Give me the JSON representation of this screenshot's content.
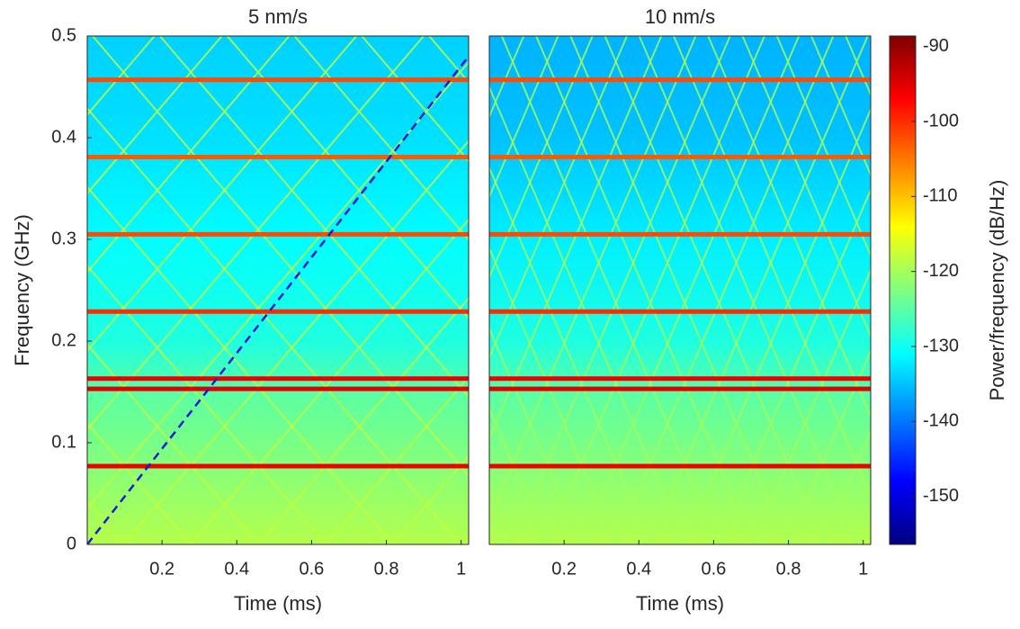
{
  "chart_data": [
    {
      "type": "spectrogram",
      "title": "5 nm/s",
      "xlabel": "Time (ms)",
      "ylabel": "Frequency (GHz)",
      "xlim": [
        0,
        1.02
      ],
      "ylim": [
        0,
        0.5
      ],
      "xticks": [
        0.2,
        0.4,
        0.6,
        0.8,
        1
      ],
      "yticks": [
        0,
        0.1,
        0.2,
        0.3,
        0.4,
        0.5
      ],
      "noise_floor": {
        "f": [
          0,
          0.05,
          0.1,
          0.15,
          0.2,
          0.3,
          0.4,
          0.5
        ],
        "level": [
          -119,
          -121,
          -123,
          -125,
          -129,
          -131,
          -133,
          -134
        ]
      },
      "tones": {
        "f": [
          0.077,
          0.153,
          0.163,
          0.229,
          0.305,
          0.381,
          0.457
        ],
        "level": [
          -96,
          -95,
          -96,
          -100,
          -102,
          -103,
          -102
        ]
      },
      "diagonals": {
        "slope": 0.43,
        "period": 0.18,
        "level": -118
      },
      "dashed_line": {
        "x": [
          0,
          1.02
        ],
        "y": [
          0,
          0.48
        ],
        "color": "#1a1ad4"
      }
    },
    {
      "type": "spectrogram",
      "title": "10 nm/s",
      "xlabel": "Time (ms)",
      "xlim": [
        0,
        1.02
      ],
      "ylim": [
        0,
        0.5
      ],
      "xticks": [
        0.2,
        0.4,
        0.6,
        0.8,
        1
      ],
      "noise_floor": {
        "f": [
          0,
          0.05,
          0.1,
          0.15,
          0.2,
          0.3,
          0.4,
          0.5
        ],
        "level": [
          -119,
          -121,
          -123,
          -125,
          -129,
          -132,
          -135,
          -136
        ]
      },
      "tones": {
        "f": [
          0.077,
          0.153,
          0.163,
          0.229,
          0.305,
          0.381,
          0.457
        ],
        "level": [
          -96,
          -95,
          -96,
          -100,
          -102,
          -103,
          -102
        ]
      },
      "diagonals": {
        "slope": 0.86,
        "period": 0.092,
        "level": -120
      }
    },
    {
      "type": "colorbar",
      "label": "Power/frequency (dB/Hz)",
      "clim": [
        -156.4,
        -88.6
      ],
      "ticks": [
        -90,
        -100,
        -110,
        -120,
        -130,
        -140,
        -150
      ]
    }
  ]
}
